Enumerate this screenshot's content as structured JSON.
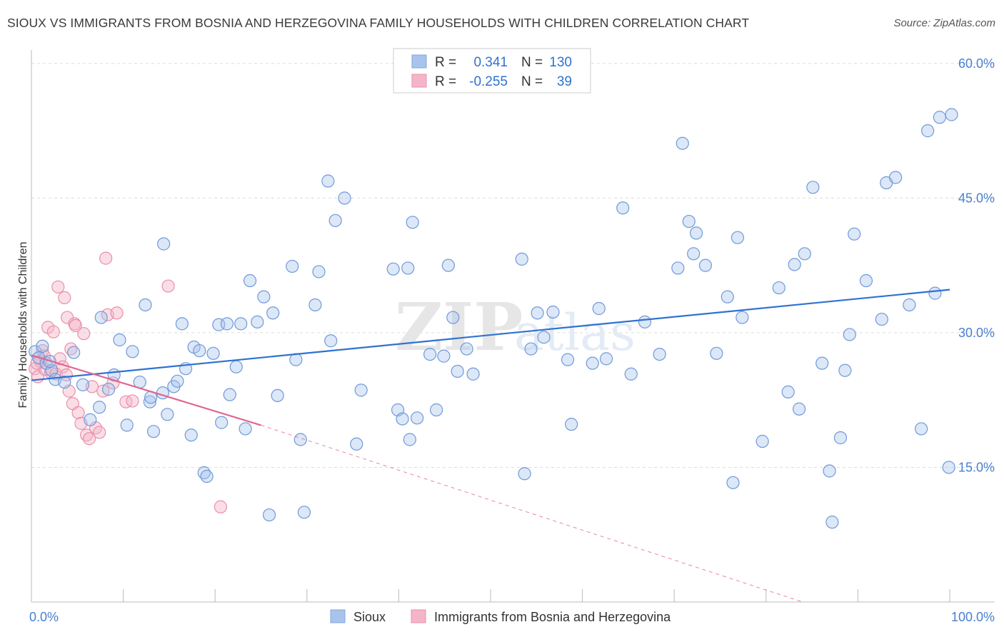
{
  "title": "SIOUX VS IMMIGRANTS FROM BOSNIA AND HERZEGOVINA FAMILY HOUSEHOLDS WITH CHILDREN CORRELATION CHART",
  "source": "Source: ZipAtlas.com",
  "watermark": {
    "zip": "ZIP",
    "atlas": "atlas"
  },
  "legend": {
    "sioux": {
      "r_label": "R =",
      "r_value": "0.341",
      "n_label": "N =",
      "n_value": "130"
    },
    "bosnia": {
      "r_label": "R =",
      "r_value": "-0.255",
      "n_label": "N =",
      "n_value": "39"
    }
  },
  "chart_data": {
    "type": "scatter",
    "title": "SIOUX VS IMMIGRANTS FROM BOSNIA AND HERZEGOVINA FAMILY HOUSEHOLDS WITH CHILDREN CORRELATION CHART",
    "xlabel": "",
    "ylabel": "Family Households with Children",
    "xlim": [
      0,
      100
    ],
    "ylim": [
      0,
      61.5
    ],
    "x_tick_labels": [
      "0.0%",
      "100.0%"
    ],
    "y_ticks": [
      15,
      30,
      45,
      60
    ],
    "y_tick_labels": [
      "15.0%",
      "30.0%",
      "45.0%",
      "60.0%"
    ],
    "grid": true,
    "legend_position": "top-center",
    "colors": {
      "sioux": "#a8c4ec",
      "sioux_line": "#2f72d0",
      "bosnia": "#f5b5c8",
      "bosnia_line": "#e06690"
    },
    "series": [
      {
        "name": "Sioux",
        "trend": {
          "x0": 0,
          "y0": 24.7,
          "x1": 100,
          "y1": 34.8
        },
        "points": [
          [
            0.4,
            27.9
          ],
          [
            0.8,
            27.2
          ],
          [
            1.2,
            28.5
          ],
          [
            1.6,
            26.6
          ],
          [
            2.2,
            25.8
          ],
          [
            2.6,
            24.8
          ],
          [
            2.0,
            26.8
          ],
          [
            3.6,
            24.5
          ],
          [
            4.6,
            27.8
          ],
          [
            5.6,
            24.2
          ],
          [
            6.4,
            20.3
          ],
          [
            7.4,
            21.7
          ],
          [
            7.6,
            31.7
          ],
          [
            8.4,
            23.7
          ],
          [
            9.0,
            25.3
          ],
          [
            9.6,
            29.2
          ],
          [
            10.4,
            19.7
          ],
          [
            11.0,
            27.9
          ],
          [
            11.8,
            24.5
          ],
          [
            12.4,
            33.1
          ],
          [
            12.9,
            22.3
          ],
          [
            13.0,
            22.8
          ],
          [
            13.3,
            19.0
          ],
          [
            14.3,
            23.3
          ],
          [
            14.8,
            20.9
          ],
          [
            14.4,
            39.9
          ],
          [
            15.5,
            24.0
          ],
          [
            15.9,
            24.6
          ],
          [
            16.4,
            31.0
          ],
          [
            16.8,
            26.0
          ],
          [
            17.4,
            18.6
          ],
          [
            17.7,
            28.4
          ],
          [
            18.3,
            28.0
          ],
          [
            18.8,
            14.4
          ],
          [
            19.1,
            14.0
          ],
          [
            19.8,
            27.7
          ],
          [
            20.4,
            30.9
          ],
          [
            20.7,
            20.0
          ],
          [
            21.3,
            31.0
          ],
          [
            21.6,
            23.1
          ],
          [
            22.3,
            26.2
          ],
          [
            22.8,
            31.0
          ],
          [
            23.3,
            19.3
          ],
          [
            23.8,
            35.8
          ],
          [
            24.6,
            31.2
          ],
          [
            25.3,
            34.0
          ],
          [
            25.9,
            9.7
          ],
          [
            26.3,
            32.2
          ],
          [
            26.8,
            23.0
          ],
          [
            28.4,
            37.4
          ],
          [
            28.8,
            27.0
          ],
          [
            29.3,
            18.1
          ],
          [
            29.7,
            10.0
          ],
          [
            30.9,
            33.1
          ],
          [
            31.3,
            36.8
          ],
          [
            32.3,
            46.9
          ],
          [
            32.6,
            29.1
          ],
          [
            33.1,
            42.5
          ],
          [
            34.1,
            45.0
          ],
          [
            35.4,
            17.6
          ],
          [
            35.9,
            23.6
          ],
          [
            39.4,
            37.1
          ],
          [
            39.9,
            21.4
          ],
          [
            40.4,
            20.4
          ],
          [
            41.0,
            37.2
          ],
          [
            41.2,
            18.1
          ],
          [
            41.5,
            42.3
          ],
          [
            42.0,
            20.5
          ],
          [
            43.4,
            27.6
          ],
          [
            44.1,
            21.4
          ],
          [
            44.9,
            27.4
          ],
          [
            45.4,
            37.5
          ],
          [
            45.9,
            31.7
          ],
          [
            46.4,
            25.7
          ],
          [
            47.4,
            28.2
          ],
          [
            48.1,
            25.4
          ],
          [
            53.4,
            38.2
          ],
          [
            53.7,
            14.3
          ],
          [
            54.4,
            28.2
          ],
          [
            55.1,
            32.2
          ],
          [
            55.8,
            29.5
          ],
          [
            56.8,
            32.3
          ],
          [
            58.4,
            27.0
          ],
          [
            58.8,
            19.8
          ],
          [
            61.1,
            26.6
          ],
          [
            61.8,
            32.7
          ],
          [
            62.6,
            27.1
          ],
          [
            64.4,
            43.9
          ],
          [
            65.3,
            25.4
          ],
          [
            66.8,
            31.2
          ],
          [
            68.4,
            27.6
          ],
          [
            70.4,
            37.2
          ],
          [
            70.9,
            51.1
          ],
          [
            71.6,
            42.4
          ],
          [
            72.1,
            38.8
          ],
          [
            72.4,
            41.1
          ],
          [
            73.4,
            37.5
          ],
          [
            74.6,
            27.7
          ],
          [
            75.8,
            34.0
          ],
          [
            76.4,
            13.3
          ],
          [
            76.9,
            40.6
          ],
          [
            77.4,
            31.7
          ],
          [
            79.6,
            17.9
          ],
          [
            81.4,
            35.0
          ],
          [
            82.4,
            23.4
          ],
          [
            83.1,
            37.6
          ],
          [
            83.6,
            21.5
          ],
          [
            84.2,
            38.8
          ],
          [
            85.1,
            46.2
          ],
          [
            86.1,
            26.6
          ],
          [
            86.9,
            14.6
          ],
          [
            87.2,
            8.9
          ],
          [
            88.1,
            18.3
          ],
          [
            88.6,
            25.8
          ],
          [
            89.1,
            29.8
          ],
          [
            89.6,
            41.0
          ],
          [
            90.9,
            35.8
          ],
          [
            92.6,
            31.5
          ],
          [
            93.1,
            46.7
          ],
          [
            94.1,
            47.3
          ],
          [
            95.6,
            33.1
          ],
          [
            96.9,
            19.3
          ],
          [
            97.6,
            52.5
          ],
          [
            98.4,
            34.4
          ],
          [
            98.9,
            54.0
          ],
          [
            100.2,
            54.3
          ],
          [
            99.9,
            15.0
          ]
        ]
      },
      {
        "name": "Immigrants from Bosnia and Herzegovina",
        "trend": {
          "x0": 0,
          "y0": 27.5,
          "x1": 25,
          "y1": 19.7
        },
        "trend_dashed_extension": {
          "x0": 25,
          "y0": 19.7,
          "x1": 84,
          "y1": 0
        },
        "points": [
          [
            0.4,
            26.0
          ],
          [
            0.7,
            25.1
          ],
          [
            1.0,
            26.8
          ],
          [
            1.2,
            28.0
          ],
          [
            1.5,
            25.9
          ],
          [
            1.8,
            30.6
          ],
          [
            2.1,
            25.6
          ],
          [
            2.4,
            30.1
          ],
          [
            2.7,
            25.4
          ],
          [
            2.9,
            35.1
          ],
          [
            3.1,
            27.1
          ],
          [
            3.4,
            26.2
          ],
          [
            3.6,
            33.9
          ],
          [
            3.8,
            25.3
          ],
          [
            3.9,
            31.7
          ],
          [
            4.1,
            23.5
          ],
          [
            4.3,
            28.2
          ],
          [
            4.5,
            22.1
          ],
          [
            4.7,
            31.0
          ],
          [
            4.8,
            30.8
          ],
          [
            5.1,
            21.1
          ],
          [
            5.4,
            19.9
          ],
          [
            5.7,
            29.9
          ],
          [
            6.0,
            18.6
          ],
          [
            6.3,
            18.2
          ],
          [
            6.6,
            24.0
          ],
          [
            7.0,
            19.4
          ],
          [
            7.4,
            18.9
          ],
          [
            7.8,
            23.5
          ],
          [
            8.1,
            38.3
          ],
          [
            8.3,
            32.0
          ],
          [
            8.9,
            24.4
          ],
          [
            9.3,
            32.2
          ],
          [
            10.3,
            22.3
          ],
          [
            11.0,
            22.4
          ],
          [
            14.9,
            35.2
          ],
          [
            20.6,
            10.6
          ],
          [
            0.6,
            26.6
          ],
          [
            1.4,
            27.4
          ]
        ]
      }
    ]
  },
  "bottom_legend": {
    "sioux": "Sioux",
    "bosnia": "Immigrants from Bosnia and Herzegovina"
  }
}
